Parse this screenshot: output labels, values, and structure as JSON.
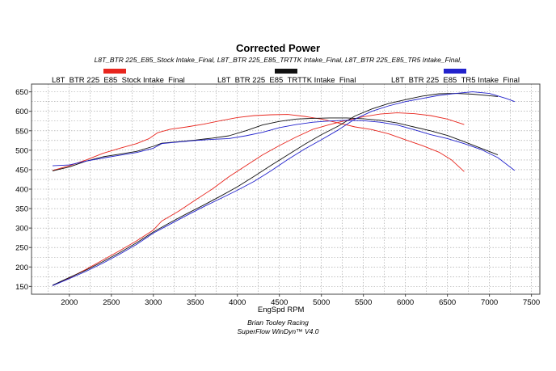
{
  "chart_data": {
    "type": "line",
    "title": "Corrected Power",
    "subtitle": "L8T_BTR 225_E85_Stock Intake_Final, L8T_BTR 225_E85_TRTTK Intake_Final, L8T_BTR 225_E85_TR5 Intake_Final,",
    "xlabel": "EngSpd RPM",
    "ylabel": "",
    "xlim": [
      1550,
      7600
    ],
    "ylim": [
      130,
      670
    ],
    "x_ticks": [
      "2000",
      "2500",
      "3000",
      "3500",
      "4000",
      "4500",
      "5000",
      "5500",
      "6000",
      "6500",
      "7000",
      "7500"
    ],
    "y_ticks": [
      "150",
      "200",
      "250",
      "300",
      "350",
      "400",
      "450",
      "500",
      "550",
      "600",
      "650"
    ],
    "grid": true,
    "legend_position": "top",
    "series": [
      {
        "name": "L8T_BTR 225_E85_Stock Intake_Final",
        "color": "#e8261e",
        "lines": [
          [
            [
              1800,
              448
            ],
            [
              2000,
              460
            ],
            [
              2200,
              475
            ],
            [
              2400,
              492
            ],
            [
              2600,
              505
            ],
            [
              2800,
              517
            ],
            [
              2950,
              530
            ],
            [
              3050,
              545
            ],
            [
              3200,
              554
            ],
            [
              3400,
              560
            ],
            [
              3600,
              567
            ],
            [
              3800,
              576
            ],
            [
              4000,
              584
            ],
            [
              4200,
              589
            ],
            [
              4400,
              591
            ],
            [
              4600,
              592
            ],
            [
              4800,
              587
            ],
            [
              5000,
              580
            ],
            [
              5200,
              570
            ],
            [
              5400,
              560
            ],
            [
              5600,
              553
            ],
            [
              5800,
              542
            ],
            [
              6000,
              527
            ],
            [
              6200,
              512
            ],
            [
              6400,
              495
            ],
            [
              6550,
              475
            ],
            [
              6700,
              445
            ]
          ],
          [
            [
              1800,
              152
            ],
            [
              2000,
              172
            ],
            [
              2200,
              194
            ],
            [
              2400,
              218
            ],
            [
              2600,
              242
            ],
            [
              2800,
              267
            ],
            [
              3000,
              295
            ],
            [
              3100,
              318
            ],
            [
              3300,
              343
            ],
            [
              3500,
              372
            ],
            [
              3700,
              400
            ],
            [
              3900,
              432
            ],
            [
              4100,
              460
            ],
            [
              4300,
              488
            ],
            [
              4500,
              512
            ],
            [
              4700,
              534
            ],
            [
              4900,
              554
            ],
            [
              5100,
              566
            ],
            [
              5300,
              577
            ],
            [
              5500,
              586
            ],
            [
              5700,
              593
            ],
            [
              5900,
              596
            ],
            [
              6100,
              594
            ],
            [
              6300,
              589
            ],
            [
              6500,
              580
            ],
            [
              6700,
              566
            ]
          ]
        ]
      },
      {
        "name": "L8T_BTR 225_E85_TRTTK Intake_Final",
        "color": "#111111",
        "lines": [
          [
            [
              1800,
              447
            ],
            [
              2000,
              457
            ],
            [
              2200,
              472
            ],
            [
              2400,
              483
            ],
            [
              2600,
              490
            ],
            [
              2800,
              497
            ],
            [
              3000,
              510
            ],
            [
              3100,
              518
            ],
            [
              3300,
              522
            ],
            [
              3500,
              526
            ],
            [
              3700,
              531
            ],
            [
              3900,
              537
            ],
            [
              4100,
              550
            ],
            [
              4300,
              565
            ],
            [
              4500,
              574
            ],
            [
              4700,
              580
            ],
            [
              4900,
              582
            ],
            [
              5100,
              583
            ],
            [
              5300,
              583
            ],
            [
              5500,
              581
            ],
            [
              5700,
              577
            ],
            [
              5900,
              570
            ],
            [
              6100,
              560
            ],
            [
              6300,
              550
            ],
            [
              6500,
              538
            ],
            [
              6700,
              522
            ],
            [
              6900,
              505
            ],
            [
              7100,
              488
            ]
          ],
          [
            [
              1800,
              153
            ],
            [
              2000,
              173
            ],
            [
              2200,
              192
            ],
            [
              2400,
              214
            ],
            [
              2600,
              237
            ],
            [
              2800,
              262
            ],
            [
              3000,
              290
            ],
            [
              3200,
              314
            ],
            [
              3400,
              337
            ],
            [
              3600,
              359
            ],
            [
              3800,
              382
            ],
            [
              4000,
              406
            ],
            [
              4200,
              433
            ],
            [
              4400,
              461
            ],
            [
              4600,
              488
            ],
            [
              4800,
              515
            ],
            [
              5000,
              540
            ],
            [
              5200,
              562
            ],
            [
              5400,
              588
            ],
            [
              5600,
              606
            ],
            [
              5800,
              620
            ],
            [
              6000,
              630
            ],
            [
              6200,
              639
            ],
            [
              6400,
              645
            ],
            [
              6600,
              646
            ],
            [
              6800,
              644
            ],
            [
              7000,
              640
            ],
            [
              7100,
              638
            ]
          ]
        ]
      },
      {
        "name": "L8T_BTR 225_E85_TR5 Intake_Final",
        "color": "#2222cc",
        "lines": [
          [
            [
              1800,
              460
            ],
            [
              2000,
              462
            ],
            [
              2200,
              472
            ],
            [
              2400,
              480
            ],
            [
              2600,
              487
            ],
            [
              2800,
              494
            ],
            [
              3000,
              505
            ],
            [
              3100,
              517
            ],
            [
              3300,
              521
            ],
            [
              3500,
              525
            ],
            [
              3700,
              528
            ],
            [
              3900,
              530
            ],
            [
              4100,
              537
            ],
            [
              4300,
              546
            ],
            [
              4500,
              558
            ],
            [
              4700,
              566
            ],
            [
              4900,
              572
            ],
            [
              5100,
              575
            ],
            [
              5300,
              577
            ],
            [
              5500,
              576
            ],
            [
              5700,
              572
            ],
            [
              5900,
              565
            ],
            [
              6100,
              553
            ],
            [
              6300,
              540
            ],
            [
              6500,
              530
            ],
            [
              6700,
              517
            ],
            [
              6900,
              502
            ],
            [
              7100,
              481
            ],
            [
              7300,
              448
            ]
          ],
          [
            [
              1800,
              152
            ],
            [
              2000,
              170
            ],
            [
              2200,
              189
            ],
            [
              2400,
              210
            ],
            [
              2600,
              233
            ],
            [
              2800,
              258
            ],
            [
              3000,
              287
            ],
            [
              3200,
              310
            ],
            [
              3400,
              333
            ],
            [
              3600,
              355
            ],
            [
              3800,
              376
            ],
            [
              4000,
              397
            ],
            [
              4200,
              420
            ],
            [
              4400,
              447
            ],
            [
              4600,
              476
            ],
            [
              4800,
              503
            ],
            [
              5000,
              527
            ],
            [
              5200,
              552
            ],
            [
              5400,
              580
            ],
            [
              5600,
              600
            ],
            [
              5800,
              614
            ],
            [
              6000,
              625
            ],
            [
              6200,
              633
            ],
            [
              6400,
              641
            ],
            [
              6600,
              646
            ],
            [
              6800,
              650
            ],
            [
              7000,
              646
            ],
            [
              7200,
              633
            ],
            [
              7300,
              625
            ]
          ]
        ]
      }
    ]
  },
  "footer": {
    "line1": "Brian Tooley Racing",
    "line2": "SuperFlow WinDyn™ V4.0"
  }
}
